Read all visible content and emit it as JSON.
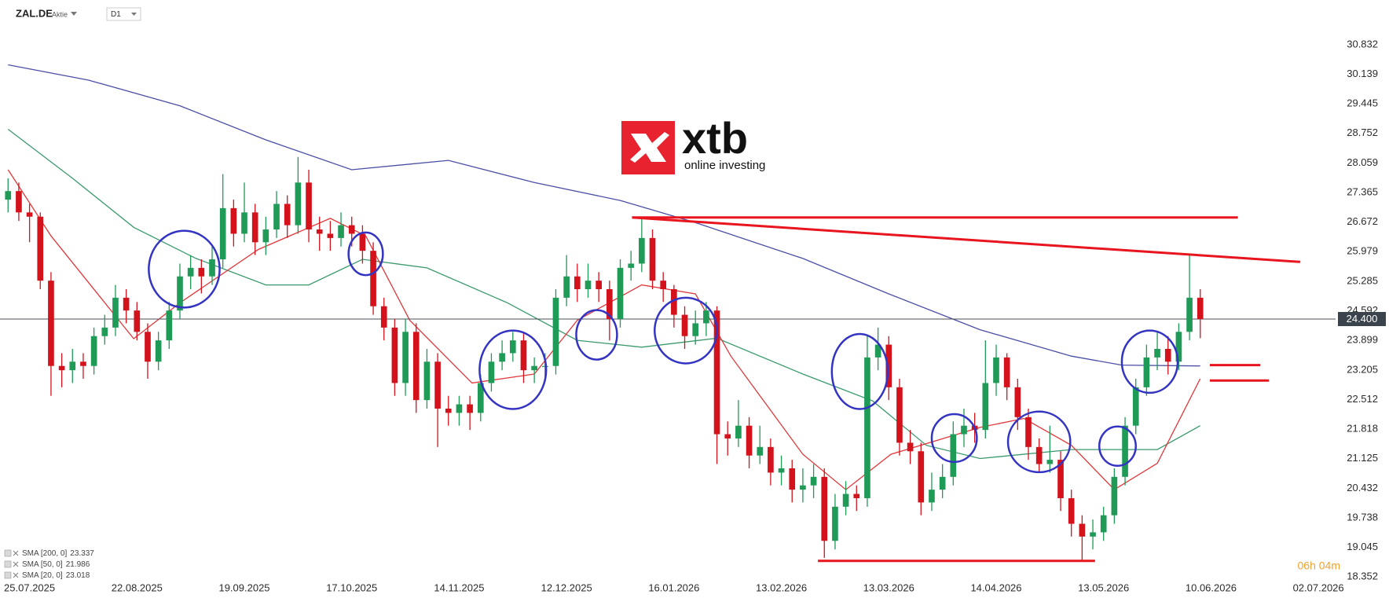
{
  "header": {
    "symbol": "ZAL.DE",
    "instrument_type": "Aktie",
    "timeframe": "D1"
  },
  "logo": {
    "name": "xtb",
    "tagline": "online investing"
  },
  "chart_data": {
    "type": "candlestick",
    "up_color": "#1f9a57",
    "down_color": "#d3121c",
    "open": [
      27.2,
      27.4,
      26.9,
      26.8,
      25.3,
      23.3,
      23.2,
      23.4,
      23.3,
      24.0,
      24.2,
      24.9,
      24.6,
      24.1,
      23.4,
      23.9,
      24.6,
      25.4,
      25.6,
      25.4,
      25.8,
      27.0,
      26.4,
      26.9,
      26.2,
      26.5,
      27.1,
      26.6,
      27.6,
      26.5,
      26.4,
      26.3,
      26.6,
      26.4,
      26.0,
      24.7,
      24.2,
      22.9,
      24.1,
      22.5,
      23.4,
      22.3,
      22.2,
      22.4,
      22.2,
      22.9,
      23.4,
      23.6,
      23.9,
      23.2,
      23.3,
      23.3,
      24.9,
      25.4,
      25.1,
      25.3,
      25.1,
      24.4,
      25.6,
      25.7,
      26.3,
      25.3,
      25.1,
      24.5,
      24.0,
      24.3,
      24.6,
      21.7,
      21.6,
      21.9,
      21.2,
      21.4,
      20.8,
      20.9,
      20.4,
      20.5,
      20.7,
      19.2,
      20.0,
      20.3,
      20.2,
      23.5,
      23.8,
      22.8,
      21.5,
      21.3,
      20.1,
      20.4,
      20.7,
      21.7,
      21.9,
      21.8,
      22.9,
      23.5,
      22.8,
      22.1,
      21.4,
      21.0,
      21.1,
      20.2,
      19.6,
      19.3,
      19.4,
      19.8,
      20.7,
      21.9,
      22.8,
      23.5,
      23.7,
      23.4,
      24.1,
      24.9
    ],
    "high": [
      27.7,
      27.6,
      27.1,
      26.9,
      25.5,
      23.6,
      23.7,
      23.6,
      24.2,
      24.5,
      25.2,
      25.1,
      24.8,
      24.3,
      24.1,
      24.8,
      25.7,
      25.9,
      25.8,
      26.1,
      27.8,
      27.2,
      27.6,
      27.1,
      26.8,
      27.4,
      27.3,
      28.2,
      27.9,
      26.8,
      26.7,
      26.9,
      26.8,
      26.6,
      26.2,
      24.9,
      24.4,
      24.4,
      24.3,
      23.7,
      23.6,
      22.6,
      22.6,
      22.6,
      23.1,
      23.6,
      23.9,
      24.1,
      24.1,
      23.5,
      23.6,
      25.1,
      25.9,
      25.7,
      25.7,
      25.5,
      25.3,
      25.8,
      26.0,
      26.8,
      26.5,
      25.5,
      25.2,
      24.7,
      24.6,
      24.8,
      24.7,
      22.0,
      22.5,
      22.1,
      21.9,
      21.6,
      21.2,
      21.1,
      20.9,
      21.0,
      20.9,
      20.3,
      20.6,
      20.5,
      24.0,
      24.2,
      24.0,
      23.0,
      21.8,
      21.5,
      20.8,
      21.0,
      22.0,
      22.3,
      22.2,
      23.9,
      23.8,
      23.6,
      23.0,
      22.3,
      21.6,
      21.9,
      21.3,
      20.4,
      19.8,
      19.7,
      20.0,
      20.9,
      22.1,
      23.0,
      23.8,
      24.1,
      24.0,
      24.3,
      25.9,
      25.1
    ],
    "low": [
      26.9,
      26.7,
      26.2,
      25.1,
      22.6,
      22.8,
      22.9,
      23.0,
      23.1,
      23.8,
      24.0,
      24.3,
      23.9,
      23.0,
      23.2,
      23.7,
      24.4,
      25.1,
      25.0,
      25.2,
      25.6,
      26.1,
      26.2,
      25.9,
      25.9,
      26.3,
      26.3,
      26.4,
      26.2,
      26.0,
      26.0,
      26.1,
      26.1,
      25.7,
      24.5,
      23.9,
      22.6,
      22.6,
      22.2,
      22.3,
      21.4,
      21.9,
      21.9,
      21.8,
      22.0,
      22.7,
      23.2,
      23.4,
      22.9,
      22.9,
      23.0,
      23.1,
      24.7,
      24.8,
      24.9,
      24.8,
      23.9,
      24.2,
      25.3,
      25.5,
      25.1,
      24.8,
      24.2,
      23.7,
      23.8,
      24.0,
      21.0,
      21.2,
      21.4,
      20.9,
      21.0,
      20.5,
      20.5,
      20.1,
      20.1,
      20.2,
      18.8,
      19.0,
      19.8,
      19.9,
      20.0,
      23.2,
      22.5,
      21.2,
      21.0,
      19.8,
      19.9,
      20.2,
      20.5,
      21.4,
      21.5,
      21.6,
      22.6,
      22.5,
      21.8,
      21.1,
      20.8,
      20.8,
      19.9,
      19.3,
      18.75,
      19.0,
      19.2,
      19.6,
      20.5,
      21.7,
      22.6,
      23.2,
      23.1,
      23.2,
      23.9,
      23.95
    ],
    "close": [
      27.4,
      26.9,
      26.8,
      25.3,
      23.3,
      23.2,
      23.4,
      23.3,
      24.0,
      24.2,
      24.9,
      24.6,
      24.1,
      23.4,
      23.9,
      24.6,
      25.4,
      25.6,
      25.4,
      25.8,
      27.0,
      26.4,
      26.9,
      26.2,
      26.5,
      27.1,
      26.6,
      27.6,
      26.5,
      26.4,
      26.3,
      26.6,
      26.4,
      26.0,
      24.7,
      24.2,
      22.9,
      24.1,
      22.5,
      23.4,
      22.3,
      22.2,
      22.4,
      22.2,
      22.9,
      23.4,
      23.6,
      23.9,
      23.2,
      23.3,
      23.3,
      24.9,
      25.4,
      25.1,
      25.3,
      25.1,
      24.4,
      25.6,
      25.7,
      26.3,
      25.3,
      25.1,
      24.5,
      24.0,
      24.3,
      24.6,
      21.7,
      21.6,
      21.9,
      21.2,
      21.4,
      20.8,
      20.9,
      20.4,
      20.5,
      20.7,
      19.2,
      20.0,
      20.3,
      20.2,
      23.5,
      23.8,
      22.8,
      21.5,
      21.3,
      20.1,
      20.4,
      20.7,
      21.7,
      21.9,
      21.8,
      22.9,
      23.5,
      22.8,
      22.1,
      21.4,
      21.0,
      21.1,
      20.2,
      19.6,
      19.3,
      19.4,
      19.8,
      20.7,
      21.9,
      22.8,
      23.5,
      23.7,
      23.4,
      24.1,
      24.9,
      24.4
    ],
    "xlim": [
      -0.75,
      123.6
    ],
    "xticks": [
      {
        "value": 2,
        "label": "25.07.2025"
      },
      {
        "value": 12,
        "label": "22.08.2025"
      },
      {
        "value": 22,
        "label": "19.09.2025"
      },
      {
        "value": 32,
        "label": "17.10.2025"
      },
      {
        "value": 42,
        "label": "14.11.2025"
      },
      {
        "value": 52,
        "label": "12.12.2025"
      },
      {
        "value": 62,
        "label": "16.01.2026"
      },
      {
        "value": 72,
        "label": "13.02.2026"
      },
      {
        "value": 82,
        "label": "13.03.2026"
      },
      {
        "value": 92,
        "label": "14.04.2026"
      },
      {
        "value": 102,
        "label": "13.05.2026"
      },
      {
        "value": 112,
        "label": "10.06.2026"
      },
      {
        "value": 122,
        "label": "02.07.2026"
      }
    ],
    "ylim": [
      18.21,
      31.88
    ],
    "yticks": [
      30.832,
      30.139,
      29.445,
      28.752,
      28.059,
      27.365,
      26.672,
      25.979,
      25.285,
      24.592,
      23.899,
      23.205,
      22.512,
      21.818,
      21.125,
      20.432,
      19.738,
      19.045,
      18.352
    ],
    "series": [
      {
        "name": "SMA [200, 0]",
        "last_value": 23.337,
        "color": "#4a4fa6",
        "x": [
          0,
          7.5,
          16,
          24,
          32,
          41,
          49,
          57,
          64,
          74,
          82,
          90.5,
          99,
          103.7,
          111
        ],
        "values": [
          30.36,
          30.0,
          29.4,
          28.6,
          27.9,
          28.12,
          27.6,
          27.18,
          26.66,
          25.82,
          24.99,
          24.15,
          23.53,
          23.32,
          23.3
        ]
      },
      {
        "name": "SMA [50, 0]",
        "last_value": 21.986,
        "color": "#3a9a6c",
        "x": [
          0,
          6,
          11.7,
          17.5,
          24,
          28,
          33,
          39,
          46.5,
          53,
          59,
          66,
          74,
          80.5,
          85.5,
          90.5,
          99,
          107,
          111
        ],
        "values": [
          28.85,
          27.7,
          26.55,
          25.82,
          25.2,
          25.2,
          25.8,
          25.6,
          24.78,
          23.9,
          23.74,
          23.95,
          23.11,
          22.48,
          21.44,
          21.13,
          21.34,
          21.34,
          21.9
        ]
      },
      {
        "name": "SMA [20, 0]",
        "last_value": 23.018,
        "color": "#e0383a",
        "x": [
          0,
          4,
          11.7,
          16,
          23.3,
          30,
          33.3,
          37.4,
          43.2,
          49,
          53,
          59,
          64,
          67.3,
          74,
          78,
          82.2,
          90.5,
          94.6,
          99,
          103,
          107,
          111
        ],
        "values": [
          27.9,
          26.35,
          23.94,
          24.78,
          26.03,
          26.76,
          26.35,
          24.37,
          22.9,
          23.11,
          24.37,
          25.2,
          24.99,
          23.53,
          21.23,
          20.4,
          21.23,
          21.86,
          22.07,
          21.44,
          20.4,
          21.02,
          23.0
        ]
      }
    ],
    "last_price": {
      "value": 24.4,
      "label": "24.400"
    },
    "countdown": "06h 04m",
    "trend_lines": [
      {
        "color": "#e8141e",
        "x": [
          58.1,
          114.5
        ],
        "values": [
          26.78,
          26.78
        ]
      },
      {
        "color": "#e8141e",
        "x": [
          58.1,
          120.3
        ],
        "values": [
          26.78,
          25.74
        ]
      },
      {
        "color": "#e8141e",
        "x": [
          75.4,
          101.2
        ],
        "values": [
          18.73,
          18.73
        ]
      },
      {
        "color": "#e8141e",
        "x": [
          111.9,
          116.6
        ],
        "values": [
          23.32,
          23.32
        ]
      },
      {
        "color": "#e8141e",
        "x": [
          111.9,
          117.4
        ],
        "values": [
          22.96,
          22.96
        ]
      }
    ],
    "circles": [
      {
        "x": 16.4,
        "y": 25.57,
        "rx": 3.3,
        "ry": 0.9,
        "color": "#3434c2"
      },
      {
        "x": 33.3,
        "y": 25.93,
        "rx": 1.6,
        "ry": 0.5,
        "color": "#3434c2"
      },
      {
        "x": 47.0,
        "y": 23.21,
        "rx": 3.1,
        "ry": 0.92,
        "color": "#3434c2"
      },
      {
        "x": 54.8,
        "y": 24.03,
        "rx": 1.9,
        "ry": 0.58,
        "color": "#3434c2"
      },
      {
        "x": 63.1,
        "y": 24.13,
        "rx": 2.9,
        "ry": 0.77,
        "color": "#3434c2"
      },
      {
        "x": 79.3,
        "y": 23.17,
        "rx": 2.6,
        "ry": 0.88,
        "color": "#3434c2"
      },
      {
        "x": 88.1,
        "y": 21.61,
        "rx": 2.1,
        "ry": 0.56,
        "color": "#3434c2"
      },
      {
        "x": 96.0,
        "y": 21.52,
        "rx": 2.9,
        "ry": 0.71,
        "color": "#3434c2"
      },
      {
        "x": 103.3,
        "y": 21.42,
        "rx": 1.7,
        "ry": 0.46,
        "color": "#3434c2"
      },
      {
        "x": 106.3,
        "y": 23.4,
        "rx": 2.6,
        "ry": 0.73,
        "color": "#3434c2"
      }
    ]
  }
}
